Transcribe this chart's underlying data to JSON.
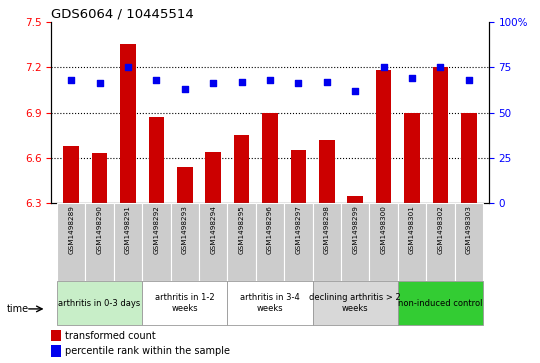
{
  "title": "GDS6064 / 10445514",
  "samples": [
    "GSM1498289",
    "GSM1498290",
    "GSM1498291",
    "GSM1498292",
    "GSM1498293",
    "GSM1498294",
    "GSM1498295",
    "GSM1498296",
    "GSM1498297",
    "GSM1498298",
    "GSM1498299",
    "GSM1498300",
    "GSM1498301",
    "GSM1498302",
    "GSM1498303"
  ],
  "bar_values": [
    6.68,
    6.63,
    7.35,
    6.87,
    6.54,
    6.64,
    6.75,
    6.9,
    6.65,
    6.72,
    6.35,
    7.18,
    6.9,
    7.2,
    6.9
  ],
  "dot_values": [
    68,
    66,
    75,
    68,
    63,
    66,
    67,
    68,
    66,
    67,
    62,
    75,
    69,
    75,
    68
  ],
  "ylim_left": [
    6.3,
    7.5
  ],
  "ylim_right": [
    0,
    100
  ],
  "yticks_left": [
    6.3,
    6.6,
    6.9,
    7.2,
    7.5
  ],
  "yticks_right": [
    0,
    25,
    50,
    75,
    100
  ],
  "bar_color": "#CC0000",
  "dot_color": "#0000EE",
  "groups": [
    {
      "label": "arthritis in 0-3 days",
      "start": 0,
      "end": 3,
      "color": "#c8eec8"
    },
    {
      "label": "arthritis in 1-2\nweeks",
      "start": 3,
      "end": 6,
      "color": "#ffffff"
    },
    {
      "label": "arthritis in 3-4\nweeks",
      "start": 6,
      "end": 9,
      "color": "#ffffff"
    },
    {
      "label": "declining arthritis > 2\nweeks",
      "start": 9,
      "end": 12,
      "color": "#d8d8d8"
    },
    {
      "label": "non-induced control",
      "start": 12,
      "end": 15,
      "color": "#33cc33"
    }
  ],
  "legend_bar_label": "transformed count",
  "legend_dot_label": "percentile rank within the sample",
  "time_label": "time"
}
